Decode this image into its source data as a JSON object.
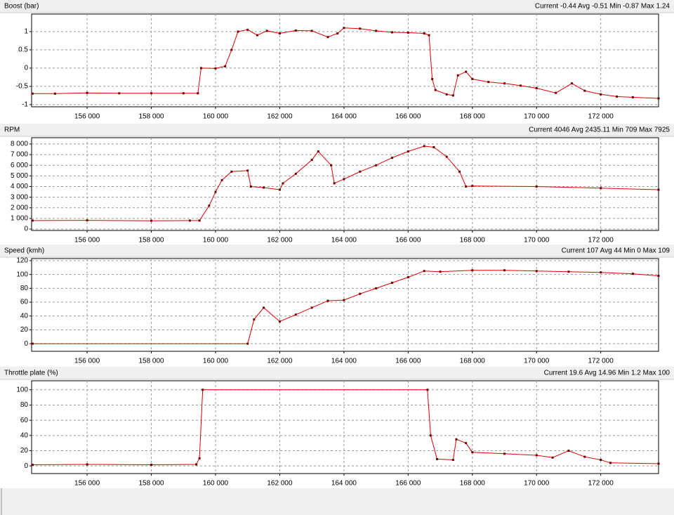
{
  "chart_data": [
    {
      "type": "line",
      "title": "Boost (bar)",
      "subtitle": "Current -0.44 Avg -0.51 Min -0.87 Max 1.24",
      "x": [
        154300,
        155000,
        156000,
        157000,
        158000,
        159000,
        159450,
        159550,
        160000,
        160300,
        160500,
        160700,
        161000,
        161300,
        161600,
        162000,
        162500,
        163000,
        163500,
        163800,
        164000,
        164500,
        165000,
        165500,
        166000,
        166500,
        166650,
        166750,
        166850,
        167200,
        167400,
        167550,
        167800,
        168000,
        168500,
        169000,
        169500,
        170000,
        170600,
        171100,
        171500,
        172000,
        172500,
        173000,
        173800
      ],
      "values": [
        -0.7,
        -0.7,
        -0.68,
        -0.69,
        -0.69,
        -0.69,
        -0.69,
        0.0,
        -0.01,
        0.05,
        0.5,
        1.0,
        1.05,
        0.9,
        1.02,
        0.95,
        1.03,
        1.02,
        0.85,
        0.95,
        1.1,
        1.08,
        1.02,
        0.98,
        0.97,
        0.95,
        0.9,
        -0.3,
        -0.6,
        -0.72,
        -0.75,
        -0.2,
        -0.1,
        -0.3,
        -0.38,
        -0.42,
        -0.48,
        -0.55,
        -0.68,
        -0.42,
        -0.62,
        -0.72,
        -0.78,
        -0.8,
        -0.83
      ],
      "color": "#e00000",
      "marker_color": "#6a0000",
      "grid": true,
      "xlim": [
        154270,
        173800
      ],
      "xticks": [
        {
          "value": 156000,
          "label": "156 000"
        },
        {
          "value": 158000,
          "label": "158 000"
        },
        {
          "value": 160000,
          "label": "160 000"
        },
        {
          "value": 162000,
          "label": "162 000"
        },
        {
          "value": 164000,
          "label": "164 000"
        },
        {
          "value": 166000,
          "label": "166 000"
        },
        {
          "value": 168000,
          "label": "168 000"
        },
        {
          "value": 170000,
          "label": "170 000"
        },
        {
          "value": 172000,
          "label": "172 000"
        }
      ],
      "ylim": [
        -1.06,
        1.48
      ],
      "yticks": [
        -1,
        -0.5,
        0,
        0.5,
        1
      ]
    },
    {
      "type": "line",
      "title": "RPM",
      "subtitle": "Current 4046 Avg 2435.11 Min 709 Max 7925",
      "x": [
        154300,
        156000,
        158000,
        159200,
        159500,
        159800,
        160000,
        160200,
        160500,
        161000,
        161100,
        161500,
        162000,
        162100,
        162500,
        163000,
        163200,
        163600,
        163700,
        164000,
        164500,
        165000,
        165500,
        166000,
        166500,
        166800,
        167200,
        167600,
        167800,
        168000,
        170000,
        172000,
        173800
      ],
      "values": [
        800,
        820,
        780,
        800,
        800,
        2200,
        3500,
        4600,
        5400,
        5500,
        4000,
        3900,
        3700,
        4300,
        5200,
        6500,
        7300,
        6000,
        4300,
        4700,
        5400,
        6000,
        6700,
        7300,
        7800,
        7700,
        6800,
        5400,
        4000,
        4050,
        4000,
        3850,
        3700
      ],
      "color": "#e00000",
      "marker_color": "#6a0000",
      "grid": true,
      "xlim": [
        154270,
        173800
      ],
      "xticks": [
        {
          "value": 156000,
          "label": "156 000"
        },
        {
          "value": 158000,
          "label": "158 000"
        },
        {
          "value": 160000,
          "label": "160 000"
        },
        {
          "value": 162000,
          "label": "162 000"
        },
        {
          "value": 164000,
          "label": "164 000"
        },
        {
          "value": 166000,
          "label": "166 000"
        },
        {
          "value": 168000,
          "label": "168 000"
        },
        {
          "value": 170000,
          "label": "170 000"
        },
        {
          "value": 172000,
          "label": "172 000"
        }
      ],
      "ylim": [
        -130,
        8590
      ],
      "yticks": [
        0,
        {
          "value": 1000,
          "label": "1 000"
        },
        {
          "value": 2000,
          "label": "2 000"
        },
        {
          "value": 3000,
          "label": "3 000"
        },
        {
          "value": 4000,
          "label": "4 000"
        },
        {
          "value": 5000,
          "label": "5 000"
        },
        {
          "value": 6000,
          "label": "6 000"
        },
        {
          "value": 7000,
          "label": "7 000"
        },
        {
          "value": 8000,
          "label": "8 000"
        }
      ]
    },
    {
      "type": "line",
      "title": "Speed (kmh)",
      "subtitle": "Current 107 Avg 44 Min 0 Max 109",
      "x": [
        154300,
        161000,
        161200,
        161500,
        162000,
        162500,
        163000,
        163500,
        164000,
        164500,
        165000,
        165500,
        166000,
        166500,
        167000,
        168000,
        169000,
        170000,
        171000,
        172000,
        173000,
        173800
      ],
      "values": [
        0,
        0,
        35,
        52,
        32,
        42,
        52,
        62,
        63,
        72,
        80,
        88,
        96,
        105,
        104,
        106,
        106,
        105,
        104,
        103,
        101,
        98
      ],
      "color": "#e00000",
      "marker_color": "#6a0000",
      "grid": true,
      "xlim": [
        154270,
        173800
      ],
      "xticks": [
        {
          "value": 156000,
          "label": "156 000"
        },
        {
          "value": 158000,
          "label": "158 000"
        },
        {
          "value": 160000,
          "label": "160 000"
        },
        {
          "value": 162000,
          "label": "162 000"
        },
        {
          "value": 164000,
          "label": "164 000"
        },
        {
          "value": 166000,
          "label": "166 000"
        },
        {
          "value": 168000,
          "label": "168 000"
        },
        {
          "value": 170000,
          "label": "170 000"
        },
        {
          "value": 172000,
          "label": "172 000"
        }
      ],
      "ylim": [
        -11,
        123
      ],
      "yticks": [
        0,
        20,
        40,
        60,
        80,
        100,
        120
      ]
    },
    {
      "type": "line",
      "title": "Throttle plate (%)",
      "subtitle": "Current 19.6 Avg 14.96 Min 1.2 Max 100",
      "x": [
        154300,
        156000,
        158000,
        159400,
        159500,
        159600,
        166600,
        166700,
        166900,
        167400,
        167500,
        167800,
        168000,
        169000,
        170000,
        170500,
        171000,
        171500,
        172000,
        172300,
        173800
      ],
      "values": [
        1.5,
        2,
        1.5,
        2,
        10,
        100,
        100,
        40,
        9,
        8,
        35,
        30,
        18,
        16,
        14,
        11,
        20,
        12,
        8,
        4,
        3
      ],
      "color": "#e00000",
      "marker_color": "#6a0000",
      "grid": true,
      "xlim": [
        154270,
        173800
      ],
      "xticks": [
        {
          "value": 156000,
          "label": "156 000"
        },
        {
          "value": 158000,
          "label": "158 000"
        },
        {
          "value": 160000,
          "label": "160 000"
        },
        {
          "value": 162000,
          "label": "162 000"
        },
        {
          "value": 164000,
          "label": "164 000"
        },
        {
          "value": 166000,
          "label": "166 000"
        },
        {
          "value": 168000,
          "label": "168 000"
        },
        {
          "value": 170000,
          "label": "170 000"
        },
        {
          "value": 172000,
          "label": "172 000"
        }
      ],
      "ylim": [
        -10,
        111.8
      ],
      "yticks": [
        0,
        20,
        40,
        60,
        80,
        100
      ]
    }
  ]
}
